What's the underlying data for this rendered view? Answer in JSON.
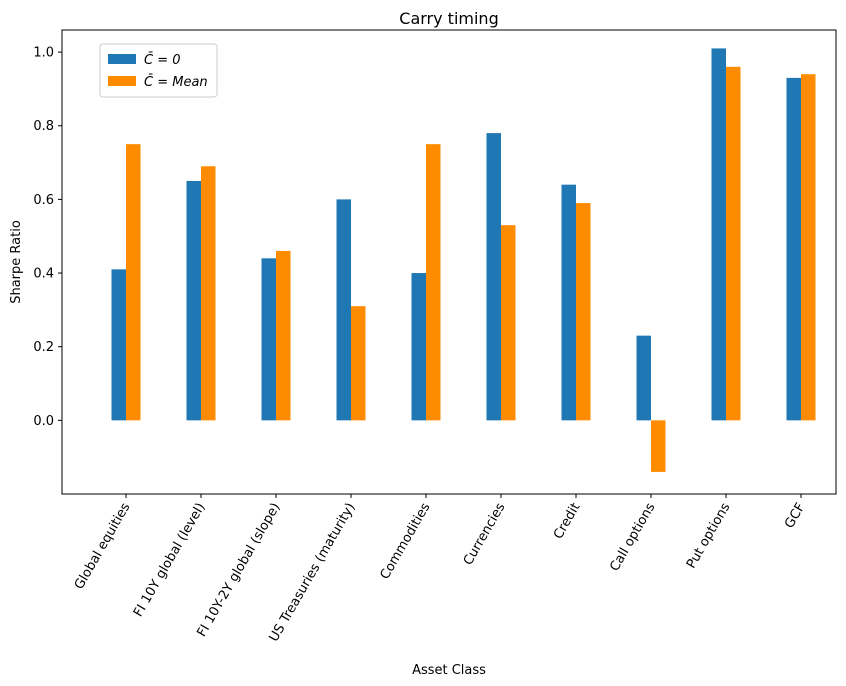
{
  "chart_data": {
    "type": "bar",
    "title": "Carry timing",
    "xlabel": "Asset Class",
    "ylabel": "Sharpe Ratio",
    "ylim": [
      -0.2,
      1.06
    ],
    "yticks": [
      0.0,
      0.2,
      0.4,
      0.6,
      0.8,
      1.0
    ],
    "ytick_labels": [
      "0.0",
      "0.2",
      "0.4",
      "0.6",
      "0.8",
      "1.0"
    ],
    "grid": false,
    "legend_position": "top-left",
    "categories": [
      "Global equities",
      "FI 10Y global (level)",
      "FI 10Y-2Y global (slope)",
      "US Treasuries (maturity)",
      "Commodities",
      "Currencies",
      "Credit",
      "Call options",
      "Put options",
      "GCF"
    ],
    "series": [
      {
        "name": "C̄ = 0",
        "color": "#1f77b4",
        "values": [
          0.41,
          0.65,
          0.44,
          0.6,
          0.4,
          0.78,
          0.64,
          0.23,
          1.01,
          0.93
        ]
      },
      {
        "name": "C̄ = Mean",
        "color": "#ff8c00",
        "values": [
          0.75,
          0.69,
          0.46,
          0.31,
          0.75,
          0.53,
          0.59,
          -0.14,
          0.96,
          0.94
        ]
      }
    ]
  }
}
